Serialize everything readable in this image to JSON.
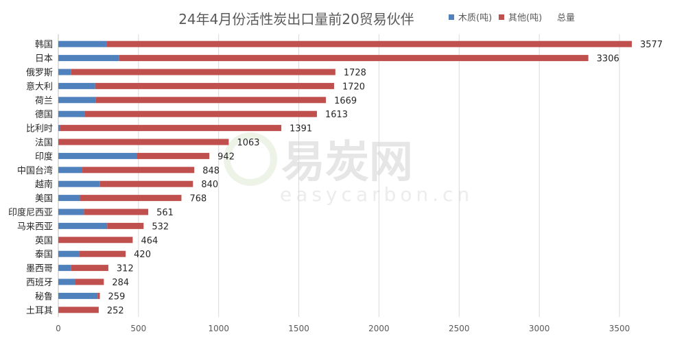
{
  "chart_data": {
    "type": "bar",
    "orientation": "horizontal",
    "stacked": true,
    "title": "24年4月份活性炭出口量前20贸易伙伴",
    "categories": [
      "韩国",
      "日本",
      "俄罗斯",
      "意大利",
      "荷兰",
      "德国",
      "比利时",
      "法国",
      "印度",
      "中国台湾",
      "越南",
      "美国",
      "印度尼西亚",
      "马来西亚",
      "英国",
      "泰国",
      "墨西哥",
      "西班牙",
      "秘鲁",
      "土耳其"
    ],
    "series": [
      {
        "name": "木质(吨)",
        "color": "#4f81bd",
        "values": [
          300,
          380,
          80,
          230,
          235,
          165,
          10,
          0,
          490,
          150,
          260,
          135,
          160,
          305,
          0,
          130,
          80,
          105,
          245,
          0
        ]
      },
      {
        "name": "其他(吨)",
        "color": "#c0504d",
        "values": [
          3277,
          2926,
          1648,
          1490,
          1434,
          1448,
          1381,
          1063,
          452,
          698,
          580,
          633,
          401,
          227,
          464,
          290,
          232,
          179,
          14,
          252
        ]
      }
    ],
    "totals": {
      "name": "总量",
      "values": [
        3577,
        3306,
        1728,
        1720,
        1669,
        1613,
        1391,
        1063,
        942,
        848,
        840,
        768,
        561,
        532,
        464,
        420,
        312,
        284,
        259,
        252
      ]
    },
    "xlim": [
      0,
      3600
    ],
    "xticks": [
      0,
      500,
      1000,
      1500,
      2000,
      2500,
      3000,
      3500
    ],
    "xlabel": "",
    "ylabel": "",
    "grid": "vertical",
    "legend_position": "top-right"
  },
  "watermark": {
    "cn": "易炭网",
    "en": "easycarbon.cn"
  }
}
